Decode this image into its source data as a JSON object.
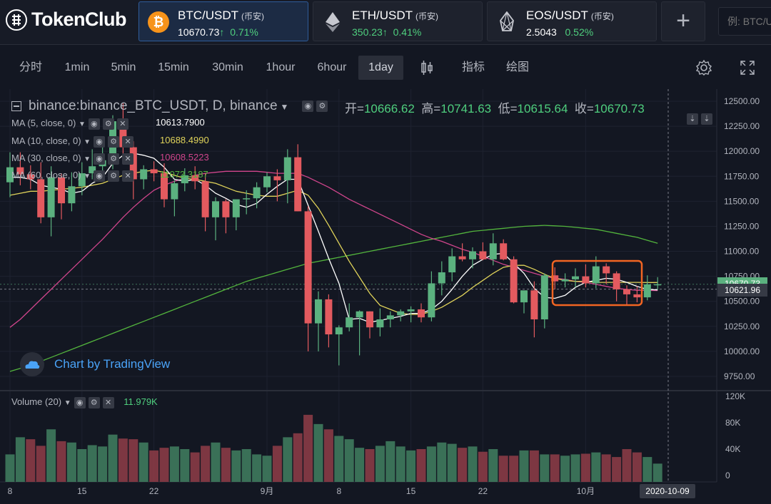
{
  "brand": {
    "name": "TokenClub"
  },
  "tickers": [
    {
      "pair": "BTC/USDT",
      "exchange": "(币安)",
      "price": "10670.73",
      "arrow": "↑",
      "change": "0.71%",
      "icon": "bitcoin-icon",
      "color": "#f7931a"
    },
    {
      "pair": "ETH/USDT",
      "exchange": "(币安)",
      "price": "350.23",
      "arrow": "↑",
      "change": "0.41%",
      "icon": "ethereum-icon",
      "color": "#c6c8cf"
    },
    {
      "pair": "EOS/USDT",
      "exchange": "(币安)",
      "price": "2.5043",
      "arrow": "",
      "change": "0.52%",
      "icon": "eos-icon",
      "color": "#c6c8cf"
    }
  ],
  "add_label": "+",
  "search": {
    "placeholder": "例: BTC/USDT"
  },
  "toolbar": {
    "intervals": [
      "分时",
      "1min",
      "5min",
      "15min",
      "30min",
      "1hour",
      "6hour",
      "1day"
    ],
    "selected": "1day",
    "indicators_label": "指标",
    "draw_label": "绘图"
  },
  "chart": {
    "symbol": "binance:binance_BTC_USDT, D, binance",
    "ohlc": [
      {
        "k": "开=",
        "v": "10666.62"
      },
      {
        "k": "高=",
        "v": "10741.63"
      },
      {
        "k": "低=",
        "v": "10615.64"
      },
      {
        "k": "收=",
        "v": "10670.73"
      }
    ],
    "ma": [
      {
        "label": "MA (5, close, 0)",
        "value": "10613.7900",
        "color": "#ffffff"
      },
      {
        "label": "MA (10, close, 0)",
        "value": "10688.4990",
        "color": "#e0d35a"
      },
      {
        "label": "MA (30, close, 0)",
        "value": "10608.5223",
        "color": "#d0458c"
      },
      {
        "label": "MA (60, close, 0)",
        "value": "11073.3187",
        "color": "#53b53d"
      }
    ],
    "volume_label": "Volume (20)",
    "volume_value": "11.979K",
    "watermark": "Chart by TradingView",
    "price_ticks": [
      "12500.00",
      "12250.00",
      "12000.00",
      "11750.00",
      "11500.00",
      "11250.00",
      "11000.00",
      "10750.00",
      "10500.00",
      "10250.00",
      "10000.00",
      "9750.00"
    ],
    "volume_ticks": [
      "120K",
      "80K",
      "40K",
      "0"
    ],
    "last_price_tag": "10670.73",
    "crosshair_price": "10621.96",
    "time_ticks": [
      "8",
      "15",
      "22",
      "9月",
      "8",
      "15",
      "22",
      "10月"
    ],
    "crosshair_date": "2020-10-09",
    "up_color": "#5bb17f",
    "down_color": "#e35a5f",
    "highlight_color": "#f26522"
  },
  "chart_data": {
    "type": "candlestick",
    "xlabel": "",
    "ylabel": "",
    "ylim": [
      9650,
      12600
    ],
    "candles": [
      [
        11690,
        11990,
        11540,
        11840
      ],
      [
        11840,
        11990,
        11660,
        11770
      ],
      [
        11770,
        11860,
        11620,
        11720
      ],
      [
        11720,
        11890,
        11280,
        11340
      ],
      [
        11340,
        11850,
        11150,
        11740
      ],
      [
        11740,
        11780,
        11320,
        11480
      ],
      [
        11480,
        11790,
        11400,
        11650
      ],
      [
        11650,
        11890,
        11560,
        11780
      ],
      [
        11780,
        12020,
        11720,
        11850
      ],
      [
        11850,
        12090,
        11760,
        11910
      ],
      [
        11910,
        12360,
        11820,
        12300
      ],
      [
        12300,
        12480,
        11900,
        12040
      ],
      [
        12040,
        12100,
        11520,
        11720
      ],
      [
        11720,
        11860,
        11620,
        11820
      ],
      [
        11820,
        11900,
        11700,
        11780
      ],
      [
        11780,
        11880,
        11440,
        11520
      ],
      [
        11520,
        11710,
        11350,
        11680
      ],
      [
        11680,
        11830,
        11600,
        11760
      ],
      [
        11760,
        11850,
        11620,
        11700
      ],
      [
        11700,
        11780,
        11200,
        11340
      ],
      [
        11340,
        11540,
        11110,
        11500
      ],
      [
        11500,
        11520,
        11180,
        11340
      ],
      [
        11340,
        11500,
        11210,
        11520
      ],
      [
        11520,
        11610,
        11370,
        11530
      ],
      [
        11530,
        11690,
        11430,
        11640
      ],
      [
        11640,
        11790,
        11590,
        11750
      ],
      [
        11750,
        11820,
        11500,
        11710
      ],
      [
        11710,
        12020,
        11480,
        11940
      ],
      [
        11940,
        12070,
        11400,
        11400
      ],
      [
        11400,
        11450,
        10000,
        10280
      ],
      [
        10280,
        10600,
        10000,
        10520
      ],
      [
        10520,
        10570,
        10040,
        10170
      ],
      [
        10170,
        10260,
        9860,
        10240
      ],
      [
        10240,
        10480,
        10200,
        10340
      ],
      [
        10340,
        10410,
        9960,
        10400
      ],
      [
        10400,
        10400,
        10130,
        10240
      ],
      [
        10240,
        10430,
        10150,
        10320
      ],
      [
        10320,
        10400,
        10240,
        10360
      ],
      [
        10360,
        10420,
        10300,
        10400
      ],
      [
        10400,
        10450,
        10290,
        10420
      ],
      [
        10420,
        10480,
        10290,
        10340
      ],
      [
        10340,
        10800,
        10300,
        10680
      ],
      [
        10680,
        10900,
        10560,
        10790
      ],
      [
        10790,
        11030,
        10700,
        10950
      ],
      [
        10950,
        11080,
        10900,
        10920
      ],
      [
        10920,
        11040,
        10830,
        11000
      ],
      [
        11000,
        11090,
        10910,
        10920
      ],
      [
        10920,
        11180,
        10860,
        11080
      ],
      [
        11080,
        11120,
        10910,
        10920
      ],
      [
        10920,
        10950,
        10480,
        10490
      ],
      [
        10490,
        10600,
        10380,
        10610
      ],
      [
        10610,
        10700,
        10140,
        10320
      ],
      [
        10320,
        10780,
        10230,
        10760
      ],
      [
        10760,
        10840,
        10620,
        10700
      ],
      [
        10700,
        10780,
        10640,
        10720
      ],
      [
        10720,
        10830,
        10640,
        10750
      ],
      [
        10750,
        10870,
        10640,
        10680
      ],
      [
        10680,
        10950,
        10630,
        10850
      ],
      [
        10850,
        10880,
        10670,
        10780
      ],
      [
        10780,
        10800,
        10500,
        10620
      ],
      [
        10620,
        10660,
        10460,
        10570
      ],
      [
        10570,
        10650,
        10490,
        10540
      ],
      [
        10540,
        10760,
        10510,
        10670
      ],
      [
        10670,
        10742,
        10616,
        10671
      ]
    ],
    "volume": [
      32,
      58,
      55,
      45,
      70,
      52,
      50,
      40,
      46,
      44,
      62,
      56,
      55,
      50,
      38,
      42,
      44,
      40,
      35,
      45,
      50,
      42,
      38,
      40,
      32,
      30,
      45,
      58,
      64,
      92,
      78,
      70,
      60,
      55,
      42,
      40,
      45,
      52,
      44,
      38,
      40,
      44,
      50,
      48,
      42,
      44,
      36,
      40,
      30,
      30,
      38,
      38,
      32,
      32,
      30,
      32,
      33,
      35,
      32,
      28,
      40,
      35,
      28,
      18
    ],
    "volume_up": [
      true,
      true,
      false,
      false,
      true,
      false,
      true,
      true,
      true,
      true,
      true,
      false,
      false,
      true,
      false,
      false,
      true,
      true,
      false,
      false,
      true,
      false,
      true,
      true,
      true,
      true,
      false,
      true,
      false,
      false,
      true,
      false,
      true,
      true,
      true,
      false,
      true,
      true,
      true,
      true,
      false,
      true,
      true,
      true,
      false,
      true,
      false,
      true,
      false,
      false,
      true,
      false,
      true,
      false,
      true,
      true,
      false,
      true,
      false,
      false,
      false,
      false,
      true,
      true
    ],
    "volume_ylim": [
      0,
      125
    ],
    "ma5": [
      11740,
      11740,
      11720,
      11660,
      11640,
      11620,
      11580,
      11600,
      11680,
      11740,
      11880,
      11960,
      11980,
      11960,
      11930,
      11840,
      11720,
      11700,
      11720,
      11660,
      11580,
      11530,
      11470,
      11440,
      11480,
      11570,
      11650,
      11720,
      11720,
      11460,
      11200,
      10930,
      10680,
      10320,
      10330,
      10290,
      10310,
      10330,
      10350,
      10380,
      10380,
      10420,
      10500,
      10620,
      10750,
      10860,
      10920,
      10970,
      10980,
      10880,
      10780,
      10630,
      10540,
      10530,
      10560,
      10640,
      10690,
      10710,
      10730,
      10720,
      10690,
      10650,
      10620,
      10614
    ],
    "ma10": [
      11560,
      11580,
      11600,
      11600,
      11610,
      11620,
      11630,
      11640,
      11660,
      11680,
      11720,
      11760,
      11780,
      11800,
      11810,
      11790,
      11760,
      11730,
      11720,
      11700,
      11680,
      11640,
      11600,
      11580,
      11560,
      11550,
      11550,
      11580,
      11610,
      11560,
      11430,
      11260,
      11080,
      10900,
      10740,
      10580,
      10460,
      10420,
      10380,
      10370,
      10370,
      10400,
      10440,
      10500,
      10560,
      10640,
      10710,
      10780,
      10840,
      10860,
      10860,
      10820,
      10770,
      10730,
      10710,
      10700,
      10700,
      10690,
      10690,
      10690,
      10690,
      10690,
      10688,
      10688
    ],
    "ma30": [
      10240,
      10320,
      10420,
      10520,
      10620,
      10720,
      10820,
      10920,
      11020,
      11120,
      11230,
      11340,
      11440,
      11530,
      11610,
      11660,
      11700,
      11730,
      11760,
      11780,
      11790,
      11800,
      11800,
      11800,
      11800,
      11790,
      11780,
      11780,
      11780,
      11740,
      11690,
      11640,
      11580,
      11520,
      11470,
      11420,
      11370,
      11320,
      11270,
      11220,
      11170,
      11130,
      11100,
      11060,
      11020,
      10990,
      10950,
      10910,
      10870,
      10840,
      10810,
      10780,
      10750,
      10730,
      10720,
      10700,
      10690,
      10670,
      10650,
      10630,
      10620,
      10610,
      10609,
      10608
    ],
    "ma60": [
      9800,
      9830,
      9860,
      9900,
      9940,
      9980,
      10020,
      10060,
      10100,
      10140,
      10180,
      10220,
      10260,
      10300,
      10340,
      10380,
      10420,
      10460,
      10500,
      10540,
      10580,
      10620,
      10660,
      10700,
      10730,
      10760,
      10790,
      10820,
      10850,
      10880,
      10900,
      10920,
      10940,
      10960,
      10980,
      11000,
      11020,
      11040,
      11060,
      11080,
      11100,
      11120,
      11140,
      11160,
      11180,
      11200,
      11210,
      11220,
      11230,
      11240,
      11250,
      11255,
      11260,
      11255,
      11250,
      11240,
      11230,
      11220,
      11200,
      11180,
      11160,
      11140,
      11110,
      11080
    ]
  }
}
